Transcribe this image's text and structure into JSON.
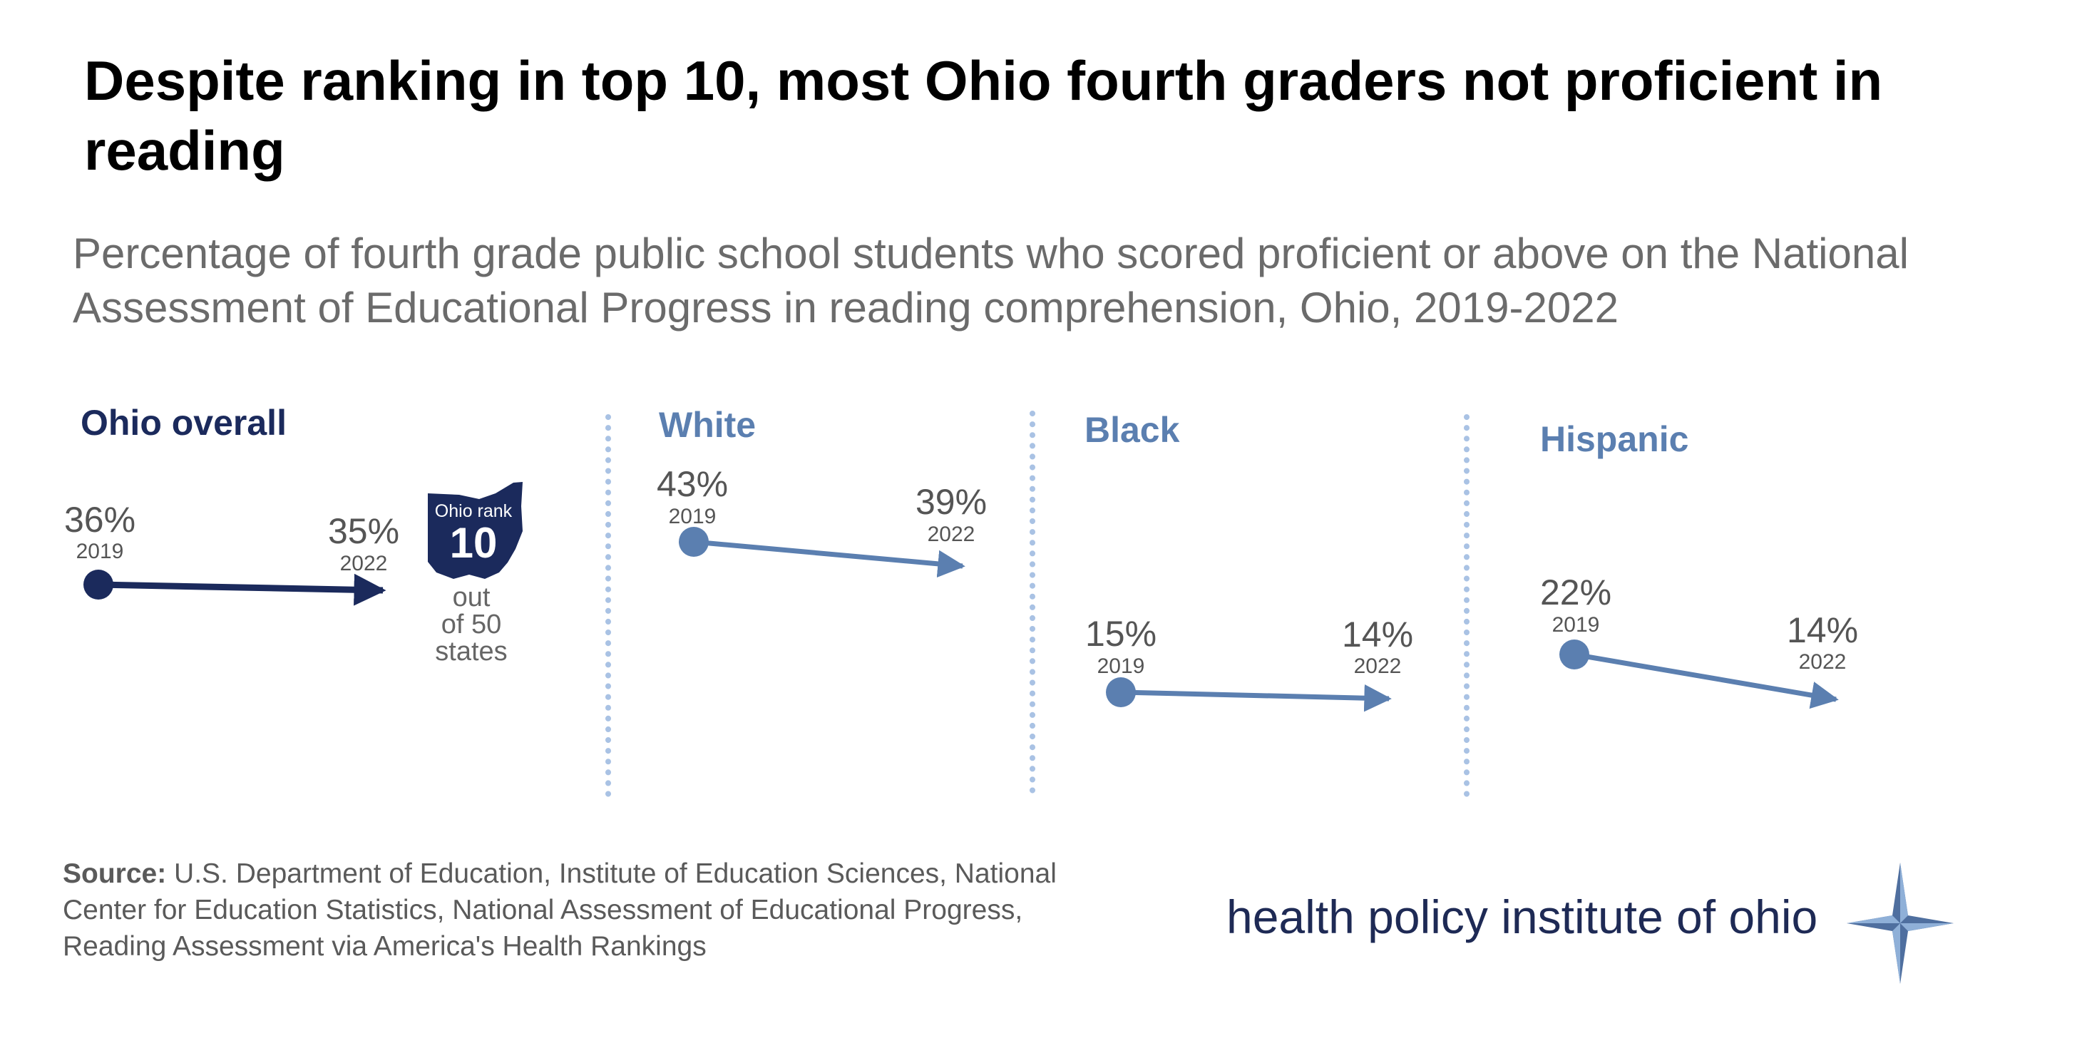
{
  "title": "Despite ranking in top 10, most Ohio fourth graders not proficient in reading",
  "subtitle": "Percentage of fourth grade public school students who scored proficient or above on the National Assessment of Educational Progress in reading comprehension, Ohio, 2019-2022",
  "colors": {
    "navy": "#1b2a5c",
    "steel": "#5b7fb0",
    "divider": "#a9c2e4",
    "label": "#555555"
  },
  "chart_data": {
    "type": "slope",
    "title": "Despite ranking in top 10, most Ohio fourth graders not proficient in reading",
    "x": [
      "2019",
      "2022"
    ],
    "series": [
      {
        "name": "Ohio overall",
        "values": [
          36,
          35
        ],
        "labels": [
          "36%",
          "35%"
        ],
        "color": "#1b2a5c"
      },
      {
        "name": "White",
        "values": [
          43,
          39
        ],
        "labels": [
          "43%",
          "39%"
        ],
        "color": "#5b7fb0"
      },
      {
        "name": "Black",
        "values": [
          15,
          14
        ],
        "labels": [
          "15%",
          "14%"
        ],
        "color": "#5b7fb0"
      },
      {
        "name": "Hispanic",
        "values": [
          22,
          14
        ],
        "labels": [
          "22%",
          "14%"
        ],
        "color": "#5b7fb0"
      }
    ],
    "annotation": {
      "badge_label": "Ohio rank",
      "rank": "10",
      "line1": "out",
      "line2": "of 50",
      "line3": "states"
    }
  },
  "source": {
    "label": "Source:",
    "text": "U.S. Department of Education, Institute of Education Sciences, National Center for Education Statistics, National Assessment of Educational Progress, Reading Assessment via America's Health Rankings"
  },
  "logo": {
    "text": "health policy institute of ohio",
    "icon": "compass-star-icon"
  }
}
